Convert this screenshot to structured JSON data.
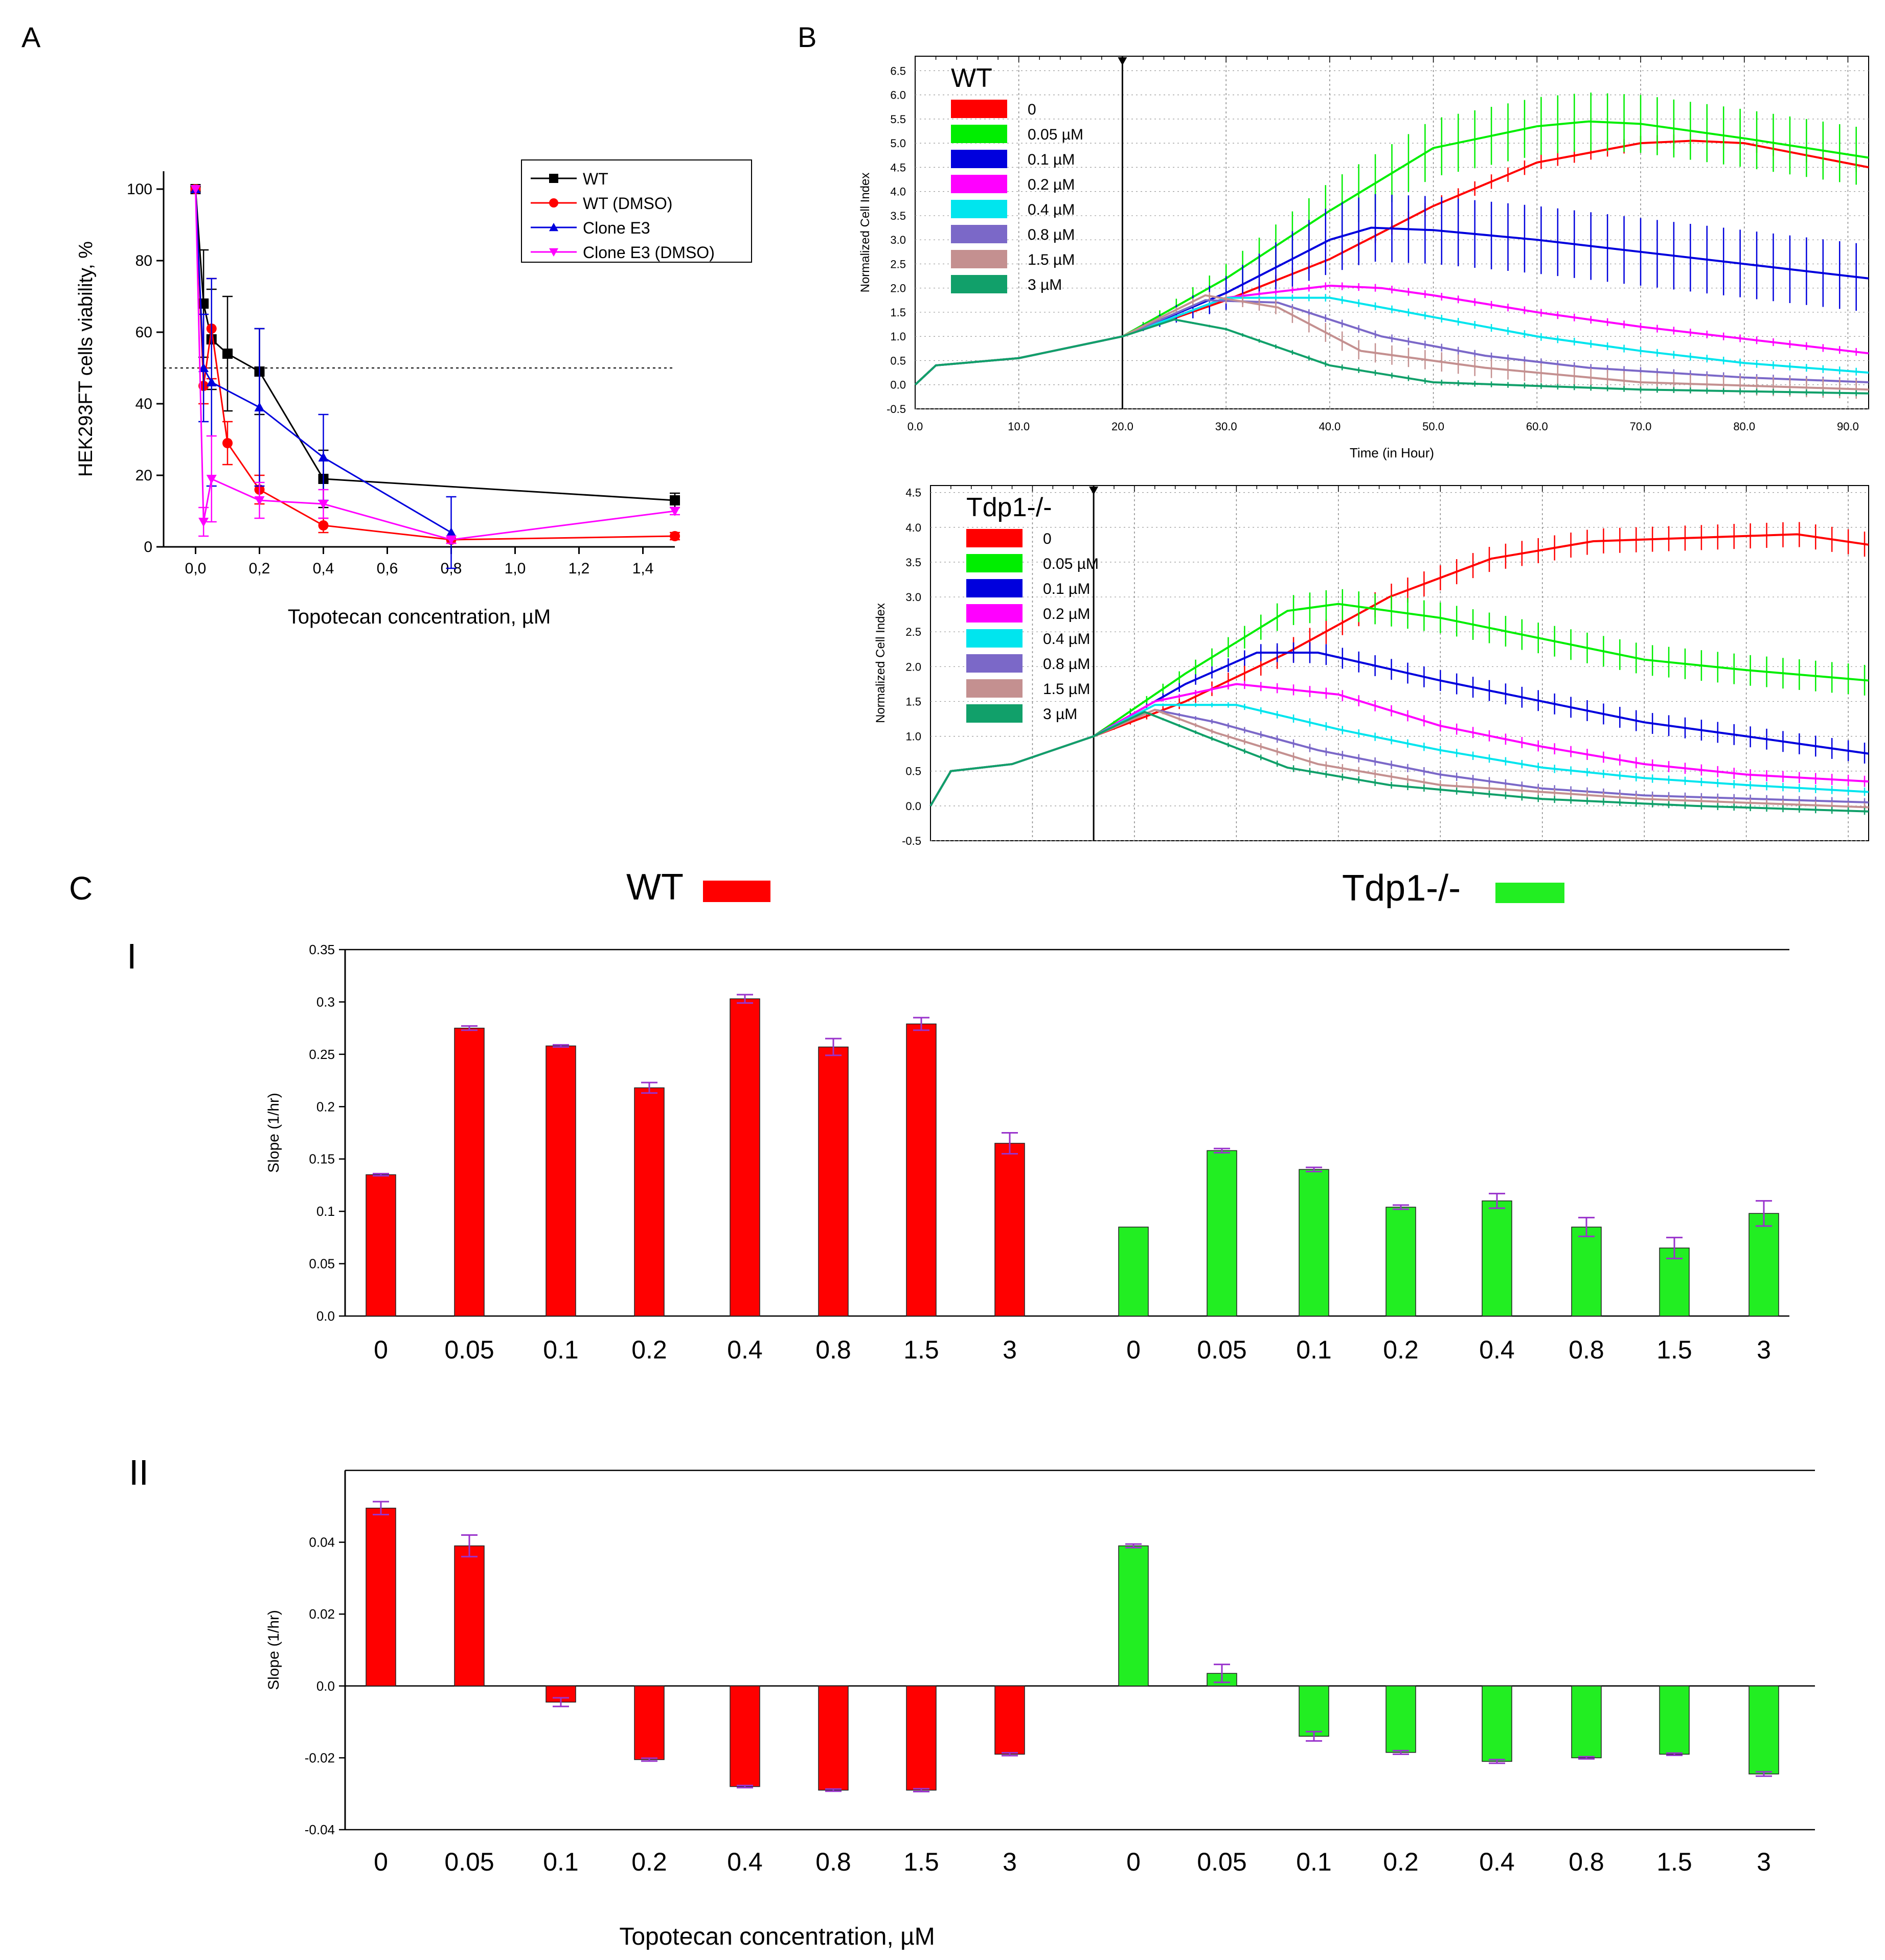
{
  "colors": {
    "red": "#ff0000",
    "green": "#00ee00",
    "blue": "#0000dd",
    "magenta": "#ff00ff",
    "cyan": "#00e5ee",
    "purple": "#7b68c8",
    "rose": "#c49090",
    "teal": "#11a06a",
    "black": "#000000",
    "bar_red": "#ff0000",
    "bar_green": "#22ee22",
    "errorbar": "#9933cc"
  },
  "panels": {
    "a": "A",
    "b": "B",
    "c": "C",
    "c_i": "I",
    "c_ii": "II"
  },
  "panel_c_header": {
    "wt_label": "WT",
    "tdp1_label": "Tdp1-/-"
  },
  "chart_data": [
    {
      "id": "A",
      "type": "line",
      "xlabel": "Topotecan concentration, µM",
      "ylabel": "HEK293FT cells viability, %",
      "xlim": [
        -0.1,
        1.5
      ],
      "ylim": [
        0,
        105
      ],
      "xticks": [
        "0,0",
        "0,2",
        "0,4",
        "0,6",
        "0,8",
        "1,0",
        "1,2",
        "1,4"
      ],
      "xtick_values": [
        0,
        0.2,
        0.4,
        0.6,
        0.8,
        1.0,
        1.2,
        1.4
      ],
      "yticks": [
        0,
        20,
        40,
        60,
        80,
        100
      ],
      "reference_line_y": 50,
      "legend_position": "top-right",
      "series": [
        {
          "name": "WT",
          "color": "#000000",
          "marker": "square",
          "x": [
            0,
            0.025,
            0.05,
            0.1,
            0.2,
            0.4,
            1.5
          ],
          "y": [
            100,
            68,
            58,
            54,
            49,
            19,
            13
          ],
          "err": [
            0,
            15,
            14,
            16,
            12,
            8,
            2
          ]
        },
        {
          "name": "WT (DMSO)",
          "color": "#ff0000",
          "marker": "circle",
          "x": [
            0,
            0.025,
            0.05,
            0.1,
            0.2,
            0.4,
            0.8,
            1.5
          ],
          "y": [
            100,
            45,
            61,
            29,
            16,
            6,
            2,
            3
          ],
          "err": [
            0,
            5,
            14,
            6,
            4,
            2,
            1,
            1
          ]
        },
        {
          "name": "Clone E3",
          "color": "#0000dd",
          "marker": "triangle-up",
          "x": [
            0,
            0.025,
            0.05,
            0.2,
            0.4,
            0.8
          ],
          "y": [
            100,
            50,
            46,
            39,
            25,
            4
          ],
          "err": [
            0,
            15,
            29,
            22,
            12,
            10
          ]
        },
        {
          "name": "Clone E3 (DMSO)",
          "color": "#ff00ff",
          "marker": "triangle-down",
          "x": [
            0,
            0.025,
            0.05,
            0.2,
            0.4,
            0.8,
            1.5
          ],
          "y": [
            100,
            7,
            19,
            13,
            12,
            2,
            10
          ],
          "err": [
            0,
            4,
            12,
            5,
            4,
            1,
            1
          ]
        }
      ]
    },
    {
      "id": "B-WT",
      "type": "line",
      "title": "WT",
      "xlabel": "Time (in Hour)",
      "ylabel": "Normalized Cell Index",
      "xlim": [
        0,
        92
      ],
      "ylim": [
        -0.5,
        6.8
      ],
      "xticks": [
        "0.0",
        "10.0",
        "20.0",
        "30.0",
        "40.0",
        "50.0",
        "60.0",
        "70.0",
        "80.0",
        "90.0"
      ],
      "xtick_values": [
        0,
        10,
        20,
        30,
        40,
        50,
        60,
        70,
        80,
        90
      ],
      "yticks": [
        "-0.5",
        "0.0",
        "0.5",
        "1.0",
        "1.5",
        "2.0",
        "2.5",
        "3.0",
        "3.5",
        "4.0",
        "4.5",
        "5.0",
        "5.5",
        "6.0",
        "6.5"
      ],
      "ytick_values": [
        -0.5,
        0,
        0.5,
        1,
        1.5,
        2,
        2.5,
        3,
        3.5,
        4,
        4.5,
        5,
        5.5,
        6,
        6.5
      ],
      "treatment_time": 20,
      "legend_position": "top-left",
      "series": [
        {
          "name": "0",
          "color": "#ff0000",
          "x": [
            0,
            2,
            10,
            20,
            30,
            40,
            50,
            60,
            70,
            75,
            80,
            92
          ],
          "y": [
            0,
            0.4,
            0.55,
            1.0,
            1.75,
            2.6,
            3.7,
            4.6,
            5.0,
            5.05,
            5.0,
            4.5
          ],
          "err": 0.15
        },
        {
          "name": "0.05 µM",
          "color": "#00ee00",
          "x": [
            0,
            2,
            10,
            20,
            30,
            40,
            50,
            60,
            65,
            70,
            80,
            92
          ],
          "y": [
            0,
            0.4,
            0.55,
            1.0,
            2.2,
            3.6,
            4.9,
            5.35,
            5.45,
            5.4,
            5.1,
            4.7
          ],
          "err": 0.6
        },
        {
          "name": "0.1 µM",
          "color": "#0000dd",
          "x": [
            0,
            2,
            10,
            20,
            30,
            40,
            44,
            50,
            60,
            70,
            80,
            92
          ],
          "y": [
            0,
            0.4,
            0.55,
            1.0,
            1.9,
            3.0,
            3.25,
            3.2,
            3.0,
            2.75,
            2.5,
            2.2
          ],
          "err": 0.7
        },
        {
          "name": "0.2 µM",
          "color": "#ff00ff",
          "x": [
            0,
            2,
            10,
            20,
            30,
            40,
            45,
            50,
            60,
            70,
            80,
            92
          ],
          "y": [
            0,
            0.4,
            0.55,
            1.0,
            1.8,
            2.05,
            2.0,
            1.85,
            1.5,
            1.2,
            0.95,
            0.65
          ],
          "err": 0.08
        },
        {
          "name": "0.4 µM",
          "color": "#00e5ee",
          "x": [
            0,
            2,
            10,
            20,
            30,
            40,
            50,
            60,
            70,
            80,
            92
          ],
          "y": [
            0,
            0.4,
            0.55,
            1.0,
            1.8,
            1.8,
            1.4,
            1.0,
            0.7,
            0.45,
            0.25
          ],
          "err": 0.08
        },
        {
          "name": "0.8 µM",
          "color": "#7b68c8",
          "x": [
            0,
            2,
            10,
            20,
            28,
            35,
            45,
            55,
            65,
            80,
            92
          ],
          "y": [
            0,
            0.4,
            0.55,
            1.0,
            1.75,
            1.7,
            1.0,
            0.6,
            0.35,
            0.15,
            0.05
          ],
          "err": 0.08
        },
        {
          "name": "1.5 µM",
          "color": "#c49090",
          "x": [
            0,
            2,
            10,
            20,
            28,
            35,
            43,
            55,
            70,
            92
          ],
          "y": [
            0,
            0.4,
            0.55,
            1.0,
            1.85,
            1.6,
            0.7,
            0.35,
            0.05,
            -0.1
          ],
          "err": 0.2
        },
        {
          "name": "3 µM",
          "color": "#11a06a",
          "x": [
            0,
            2,
            10,
            20,
            25,
            30,
            40,
            50,
            70,
            92
          ],
          "y": [
            0,
            0.4,
            0.55,
            1.0,
            1.35,
            1.15,
            0.4,
            0.05,
            -0.1,
            -0.18
          ],
          "err": 0.06
        }
      ]
    },
    {
      "id": "B-Tdp1",
      "type": "line",
      "title": "Tdp1-/-",
      "xlabel": "",
      "ylabel": "Normalized Cell Index",
      "xlim": [
        0,
        92
      ],
      "ylim": [
        -0.5,
        4.6
      ],
      "yticks": [
        "-0.5",
        "0.0",
        "0.5",
        "1.0",
        "1.5",
        "2.0",
        "2.5",
        "3.0",
        "3.5",
        "4.0",
        "4.5"
      ],
      "ytick_values": [
        -0.5,
        0,
        0.5,
        1,
        1.5,
        2,
        2.5,
        3,
        3.5,
        4,
        4.5
      ],
      "treatment_time": 16,
      "legend_position": "top-left",
      "series": [
        {
          "name": "0",
          "color": "#ff0000",
          "x": [
            0,
            2,
            8,
            16,
            25,
            35,
            45,
            55,
            65,
            75,
            85,
            92
          ],
          "y": [
            0,
            0.5,
            0.6,
            1.0,
            1.5,
            2.2,
            3.0,
            3.55,
            3.8,
            3.85,
            3.9,
            3.75
          ],
          "err": 0.18
        },
        {
          "name": "0.05 µM",
          "color": "#00ee00",
          "x": [
            0,
            2,
            8,
            16,
            25,
            35,
            40,
            50,
            60,
            70,
            80,
            92
          ],
          "y": [
            0,
            0.5,
            0.6,
            1.0,
            1.9,
            2.8,
            2.9,
            2.7,
            2.4,
            2.1,
            1.95,
            1.8
          ],
          "err": 0.22
        },
        {
          "name": "0.1 µM",
          "color": "#0000dd",
          "x": [
            0,
            2,
            8,
            16,
            25,
            32,
            38,
            50,
            60,
            70,
            80,
            92
          ],
          "y": [
            0,
            0.5,
            0.6,
            1.0,
            1.75,
            2.2,
            2.2,
            1.8,
            1.5,
            1.2,
            1.0,
            0.75
          ],
          "err": 0.15
        },
        {
          "name": "0.2 µM",
          "color": "#ff00ff",
          "x": [
            0,
            2,
            8,
            16,
            22,
            30,
            40,
            50,
            60,
            70,
            80,
            92
          ],
          "y": [
            0,
            0.5,
            0.6,
            1.0,
            1.5,
            1.75,
            1.6,
            1.15,
            0.85,
            0.6,
            0.45,
            0.35
          ],
          "err": 0.08
        },
        {
          "name": "0.4 µM",
          "color": "#00e5ee",
          "x": [
            0,
            2,
            8,
            16,
            22,
            30,
            40,
            50,
            60,
            70,
            80,
            92
          ],
          "y": [
            0,
            0.5,
            0.6,
            1.0,
            1.45,
            1.45,
            1.1,
            0.8,
            0.55,
            0.4,
            0.3,
            0.2
          ],
          "err": 0.06
        },
        {
          "name": "0.8 µM",
          "color": "#7b68c8",
          "x": [
            0,
            2,
            8,
            16,
            22,
            28,
            38,
            50,
            60,
            70,
            92
          ],
          "y": [
            0,
            0.5,
            0.6,
            1.0,
            1.38,
            1.2,
            0.8,
            0.45,
            0.25,
            0.15,
            0.05
          ],
          "err": 0.06
        },
        {
          "name": "1.5 µM",
          "color": "#c49090",
          "x": [
            0,
            2,
            8,
            16,
            22,
            28,
            38,
            50,
            70,
            92
          ],
          "y": [
            0,
            0.5,
            0.6,
            1.0,
            1.38,
            1.05,
            0.6,
            0.3,
            0.1,
            -0.02
          ],
          "err": 0.06
        },
        {
          "name": "3 µM",
          "color": "#11a06a",
          "x": [
            0,
            2,
            8,
            16,
            21,
            27,
            35,
            45,
            60,
            75,
            92
          ],
          "y": [
            0,
            0.5,
            0.6,
            1.0,
            1.35,
            1.0,
            0.55,
            0.3,
            0.1,
            0.0,
            -0.08
          ],
          "err": 0.05
        }
      ]
    },
    {
      "id": "C-I",
      "type": "bar",
      "ylabel": "Slope (1/hr)",
      "ylim": [
        0,
        0.35
      ],
      "yticks": [
        "0.0",
        "0.05",
        "0.1",
        "0.15",
        "0.2",
        "0.25",
        "0.3",
        "0.35"
      ],
      "ytick_values": [
        0,
        0.05,
        0.1,
        0.15,
        0.2,
        0.25,
        0.3,
        0.35
      ],
      "groups": [
        {
          "name": "WT",
          "color": "#ff0000",
          "categories": [
            "0",
            "0.05",
            "0.1",
            "0.2",
            "0.4",
            "0.8",
            "1.5",
            "3"
          ],
          "values": [
            0.135,
            0.275,
            0.258,
            0.218,
            0.303,
            0.257,
            0.279,
            0.165
          ],
          "err": [
            0.001,
            0.002,
            0.001,
            0.005,
            0.004,
            0.008,
            0.006,
            0.01
          ]
        },
        {
          "name": "Tdp1-/-",
          "color": "#22ee22",
          "categories": [
            "0",
            "0.05",
            "0.1",
            "0.2",
            "0.4",
            "0.8",
            "1.5",
            "3"
          ],
          "values": [
            0.085,
            0.158,
            0.14,
            0.104,
            0.11,
            0.085,
            0.065,
            0.098
          ],
          "err": [
            0.0,
            0.002,
            0.002,
            0.002,
            0.007,
            0.009,
            0.01,
            0.012
          ]
        }
      ]
    },
    {
      "id": "C-II",
      "type": "bar",
      "xlabel": "Topotecan concentration, µM",
      "ylabel": "Slope (1/hr)",
      "ylim": [
        -0.04,
        0.06
      ],
      "yticks": [
        "-0.04",
        "-0.02",
        "0.0",
        "0.02",
        "0.04"
      ],
      "ytick_values": [
        -0.04,
        -0.02,
        0,
        0.02,
        0.04
      ],
      "groups": [
        {
          "name": "WT",
          "color": "#ff0000",
          "categories": [
            "0",
            "0.05",
            "0.1",
            "0.2",
            "0.4",
            "0.8",
            "1.5",
            "3"
          ],
          "values": [
            0.0495,
            0.039,
            -0.0045,
            -0.0205,
            -0.028,
            -0.029,
            -0.029,
            -0.019
          ],
          "err": [
            0.0018,
            0.003,
            0.0012,
            0.0004,
            0.0003,
            0.0003,
            0.0004,
            0.0004
          ]
        },
        {
          "name": "Tdp1-/-",
          "color": "#22ee22",
          "categories": [
            "0",
            "0.05",
            "0.1",
            "0.2",
            "0.4",
            "0.8",
            "1.5",
            "3"
          ],
          "values": [
            0.039,
            0.0035,
            -0.014,
            -0.0185,
            -0.021,
            -0.02,
            -0.019,
            -0.0245
          ],
          "err": [
            0.0005,
            0.0025,
            0.0013,
            0.0005,
            0.0005,
            0.0003,
            0.0003,
            0.0006
          ]
        }
      ]
    }
  ]
}
